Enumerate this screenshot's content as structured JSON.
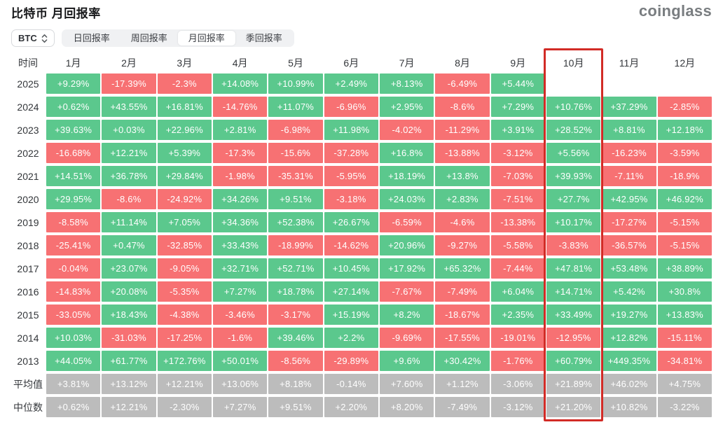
{
  "page": {
    "title": "比特币 月回报率",
    "logo": "coinglass"
  },
  "controls": {
    "coin_selector": {
      "value": "BTC"
    },
    "tabs": [
      {
        "label": "日回报率",
        "active": false
      },
      {
        "label": "周回报率",
        "active": false
      },
      {
        "label": "月回报率",
        "active": true
      },
      {
        "label": "季回报率",
        "active": false
      }
    ]
  },
  "table": {
    "time_header": "时间",
    "months": [
      "1月",
      "2月",
      "3月",
      "4月",
      "5月",
      "6月",
      "7月",
      "8月",
      "9月",
      "10月",
      "11月",
      "12月"
    ],
    "highlighted_month": "10月",
    "rows": [
      {
        "label": "2025",
        "type": "year",
        "values": [
          "+9.29%",
          "-17.39%",
          "-2.3%",
          "+14.08%",
          "+10.99%",
          "+2.49%",
          "+8.13%",
          "-6.49%",
          "+5.44%",
          "",
          "",
          ""
        ]
      },
      {
        "label": "2024",
        "type": "year",
        "values": [
          "+0.62%",
          "+43.55%",
          "+16.81%",
          "-14.76%",
          "+11.07%",
          "-6.96%",
          "+2.95%",
          "-8.6%",
          "+7.29%",
          "+10.76%",
          "+37.29%",
          "-2.85%"
        ]
      },
      {
        "label": "2023",
        "type": "year",
        "values": [
          "+39.63%",
          "+0.03%",
          "+22.96%",
          "+2.81%",
          "-6.98%",
          "+11.98%",
          "-4.02%",
          "-11.29%",
          "+3.91%",
          "+28.52%",
          "+8.81%",
          "+12.18%"
        ]
      },
      {
        "label": "2022",
        "type": "year",
        "values": [
          "-16.68%",
          "+12.21%",
          "+5.39%",
          "-17.3%",
          "-15.6%",
          "-37.28%",
          "+16.8%",
          "-13.88%",
          "-3.12%",
          "+5.56%",
          "-16.23%",
          "-3.59%"
        ]
      },
      {
        "label": "2021",
        "type": "year",
        "values": [
          "+14.51%",
          "+36.78%",
          "+29.84%",
          "-1.98%",
          "-35.31%",
          "-5.95%",
          "+18.19%",
          "+13.8%",
          "-7.03%",
          "+39.93%",
          "-7.11%",
          "-18.9%"
        ]
      },
      {
        "label": "2020",
        "type": "year",
        "values": [
          "+29.95%",
          "-8.6%",
          "-24.92%",
          "+34.26%",
          "+9.51%",
          "-3.18%",
          "+24.03%",
          "+2.83%",
          "-7.51%",
          "+27.7%",
          "+42.95%",
          "+46.92%"
        ]
      },
      {
        "label": "2019",
        "type": "year",
        "values": [
          "-8.58%",
          "+11.14%",
          "+7.05%",
          "+34.36%",
          "+52.38%",
          "+26.67%",
          "-6.59%",
          "-4.6%",
          "-13.38%",
          "+10.17%",
          "-17.27%",
          "-5.15%"
        ]
      },
      {
        "label": "2018",
        "type": "year",
        "values": [
          "-25.41%",
          "+0.47%",
          "-32.85%",
          "+33.43%",
          "-18.99%",
          "-14.62%",
          "+20.96%",
          "-9.27%",
          "-5.58%",
          "-3.83%",
          "-36.57%",
          "-5.15%"
        ]
      },
      {
        "label": "2017",
        "type": "year",
        "values": [
          "-0.04%",
          "+23.07%",
          "-9.05%",
          "+32.71%",
          "+52.71%",
          "+10.45%",
          "+17.92%",
          "+65.32%",
          "-7.44%",
          "+47.81%",
          "+53.48%",
          "+38.89%"
        ]
      },
      {
        "label": "2016",
        "type": "year",
        "values": [
          "-14.83%",
          "+20.08%",
          "-5.35%",
          "+7.27%",
          "+18.78%",
          "+27.14%",
          "-7.67%",
          "-7.49%",
          "+6.04%",
          "+14.71%",
          "+5.42%",
          "+30.8%"
        ]
      },
      {
        "label": "2015",
        "type": "year",
        "values": [
          "-33.05%",
          "+18.43%",
          "-4.38%",
          "-3.46%",
          "-3.17%",
          "+15.19%",
          "+8.2%",
          "-18.67%",
          "+2.35%",
          "+33.49%",
          "+19.27%",
          "+13.83%"
        ]
      },
      {
        "label": "2014",
        "type": "year",
        "values": [
          "+10.03%",
          "-31.03%",
          "-17.25%",
          "-1.6%",
          "+39.46%",
          "+2.2%",
          "-9.69%",
          "-17.55%",
          "-19.01%",
          "-12.95%",
          "+12.82%",
          "-15.11%"
        ]
      },
      {
        "label": "2013",
        "type": "year",
        "values": [
          "+44.05%",
          "+61.77%",
          "+172.76%",
          "+50.01%",
          "-8.56%",
          "-29.89%",
          "+9.6%",
          "+30.42%",
          "-1.76%",
          "+60.79%",
          "+449.35%",
          "-34.81%"
        ]
      },
      {
        "label": "平均值",
        "type": "summary",
        "values": [
          "+3.81%",
          "+13.12%",
          "+12.21%",
          "+13.06%",
          "+8.18%",
          "-0.14%",
          "+7.60%",
          "+1.12%",
          "-3.06%",
          "+21.89%",
          "+46.02%",
          "+4.75%"
        ]
      },
      {
        "label": "中位数",
        "type": "summary",
        "values": [
          "+0.62%",
          "+12.21%",
          "-2.30%",
          "+7.27%",
          "+9.51%",
          "+2.20%",
          "+8.20%",
          "-7.49%",
          "-3.12%",
          "+21.20%",
          "+10.82%",
          "-3.22%"
        ]
      }
    ]
  },
  "colors": {
    "positive": "#5BC88D",
    "negative": "#F77173",
    "summary": "#BCBCBC",
    "highlight_border": "#D22B26"
  },
  "chart_data": {
    "type": "heatmap",
    "title": "比特币 月回报率",
    "unit": "%",
    "x_categories": [
      "1月",
      "2月",
      "3月",
      "4月",
      "5月",
      "6月",
      "7月",
      "8月",
      "9月",
      "10月",
      "11月",
      "12月"
    ],
    "y_categories": [
      "2025",
      "2024",
      "2023",
      "2022",
      "2021",
      "2020",
      "2019",
      "2018",
      "2017",
      "2016",
      "2015",
      "2014",
      "2013",
      "平均值",
      "中位数"
    ],
    "highlight_column": "10月",
    "color_coding": "green=positive, red=negative, grey=summary rows",
    "series": [
      {
        "name": "2025",
        "values": [
          9.29,
          -17.39,
          -2.3,
          14.08,
          10.99,
          2.49,
          8.13,
          -6.49,
          5.44,
          null,
          null,
          null
        ]
      },
      {
        "name": "2024",
        "values": [
          0.62,
          43.55,
          16.81,
          -14.76,
          11.07,
          -6.96,
          2.95,
          -8.6,
          7.29,
          10.76,
          37.29,
          -2.85
        ]
      },
      {
        "name": "2023",
        "values": [
          39.63,
          0.03,
          22.96,
          2.81,
          -6.98,
          11.98,
          -4.02,
          -11.29,
          3.91,
          28.52,
          8.81,
          12.18
        ]
      },
      {
        "name": "2022",
        "values": [
          -16.68,
          12.21,
          5.39,
          -17.3,
          -15.6,
          -37.28,
          16.8,
          -13.88,
          -3.12,
          5.56,
          -16.23,
          -3.59
        ]
      },
      {
        "name": "2021",
        "values": [
          14.51,
          36.78,
          29.84,
          -1.98,
          -35.31,
          -5.95,
          18.19,
          13.8,
          -7.03,
          39.93,
          -7.11,
          -18.9
        ]
      },
      {
        "name": "2020",
        "values": [
          29.95,
          -8.6,
          -24.92,
          34.26,
          9.51,
          -3.18,
          24.03,
          2.83,
          -7.51,
          27.7,
          42.95,
          46.92
        ]
      },
      {
        "name": "2019",
        "values": [
          -8.58,
          11.14,
          7.05,
          34.36,
          52.38,
          26.67,
          -6.59,
          -4.6,
          -13.38,
          10.17,
          -17.27,
          -5.15
        ]
      },
      {
        "name": "2018",
        "values": [
          -25.41,
          0.47,
          -32.85,
          33.43,
          -18.99,
          -14.62,
          20.96,
          -9.27,
          -5.58,
          -3.83,
          -36.57,
          -5.15
        ]
      },
      {
        "name": "2017",
        "values": [
          -0.04,
          23.07,
          -9.05,
          32.71,
          52.71,
          10.45,
          17.92,
          65.32,
          -7.44,
          47.81,
          53.48,
          38.89
        ]
      },
      {
        "name": "2016",
        "values": [
          -14.83,
          20.08,
          -5.35,
          7.27,
          18.78,
          27.14,
          -7.67,
          -7.49,
          6.04,
          14.71,
          5.42,
          30.8
        ]
      },
      {
        "name": "2015",
        "values": [
          -33.05,
          18.43,
          -4.38,
          -3.46,
          -3.17,
          15.19,
          8.2,
          -18.67,
          2.35,
          33.49,
          19.27,
          13.83
        ]
      },
      {
        "name": "2014",
        "values": [
          10.03,
          -31.03,
          -17.25,
          -1.6,
          39.46,
          2.2,
          -9.69,
          -17.55,
          -19.01,
          -12.95,
          12.82,
          -15.11
        ]
      },
      {
        "name": "2013",
        "values": [
          44.05,
          61.77,
          172.76,
          50.01,
          -8.56,
          -29.89,
          9.6,
          30.42,
          -1.76,
          60.79,
          449.35,
          -34.81
        ]
      },
      {
        "name": "平均值",
        "values": [
          3.81,
          13.12,
          12.21,
          13.06,
          8.18,
          -0.14,
          7.6,
          1.12,
          -3.06,
          21.89,
          46.02,
          4.75
        ]
      },
      {
        "name": "中位数",
        "values": [
          0.62,
          12.21,
          -2.3,
          7.27,
          9.51,
          2.2,
          8.2,
          -7.49,
          -3.12,
          21.2,
          10.82,
          -3.22
        ]
      }
    ]
  }
}
